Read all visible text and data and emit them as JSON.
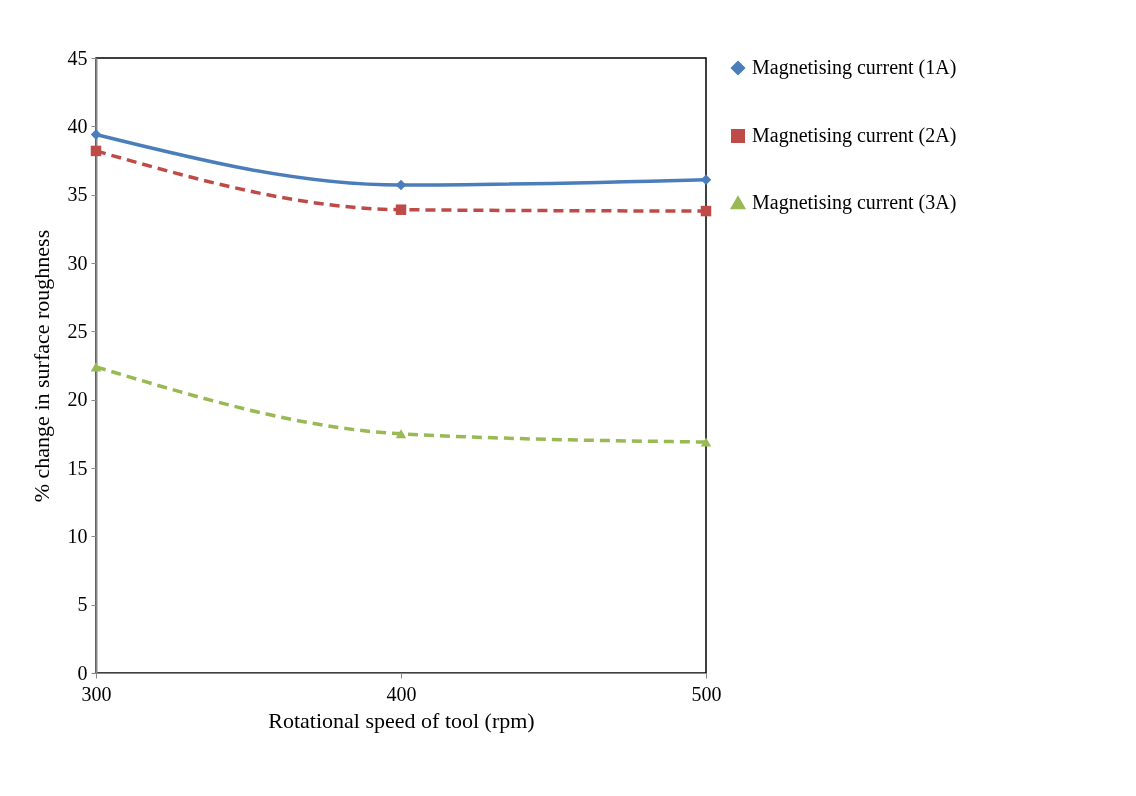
{
  "chart_data": {
    "type": "line",
    "xlabel": "Rotational speed of tool (rpm)",
    "ylabel": "% change in surface roughness",
    "x": [
      300,
      400,
      500
    ],
    "xlim": [
      300,
      500
    ],
    "xticks": [
      300,
      400,
      500
    ],
    "ylim": [
      0,
      45
    ],
    "yticks": [
      0,
      5,
      10,
      15,
      20,
      25,
      30,
      35,
      40,
      45
    ],
    "grid": false,
    "legend": "right",
    "series": [
      {
        "name": "Magnetising current (1A)",
        "color": "#4a7ebb",
        "marker": "diamond",
        "line_style": "solid",
        "values": [
          39.4,
          35.7,
          36.1
        ]
      },
      {
        "name": "Magnetising current (2A)",
        "color": "#be4b48",
        "marker": "square",
        "line_style": "dashed",
        "values": [
          38.2,
          33.9,
          33.8
        ]
      },
      {
        "name": "Magnetising current (3A)",
        "color": "#98b954",
        "marker": "triangle",
        "line_style": "dashed",
        "values": [
          22.4,
          17.5,
          16.9
        ]
      }
    ]
  }
}
